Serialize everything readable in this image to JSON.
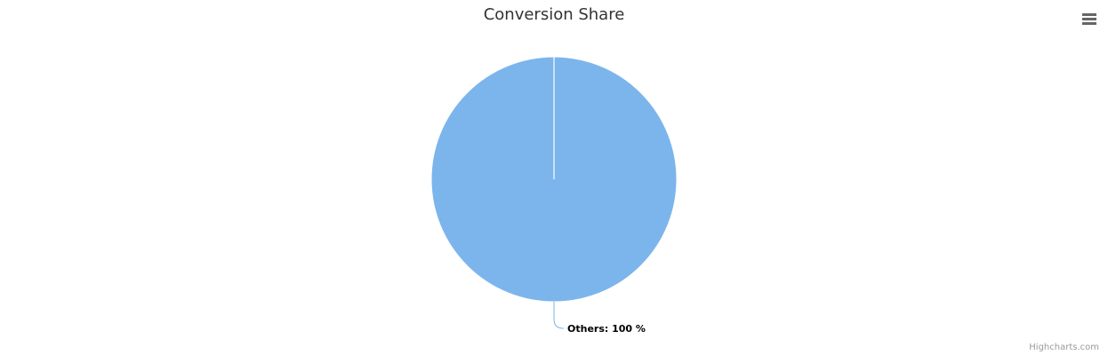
{
  "chart_data": {
    "type": "pie",
    "title": "Conversion Share",
    "slices": [
      {
        "name": "Others",
        "value": 100,
        "label": "Others:  100 %",
        "color": "#7cb5ec"
      }
    ]
  },
  "toolbar": {
    "menu_icon": "hamburger-menu-icon"
  },
  "credits": {
    "text": "Highcharts.com"
  }
}
